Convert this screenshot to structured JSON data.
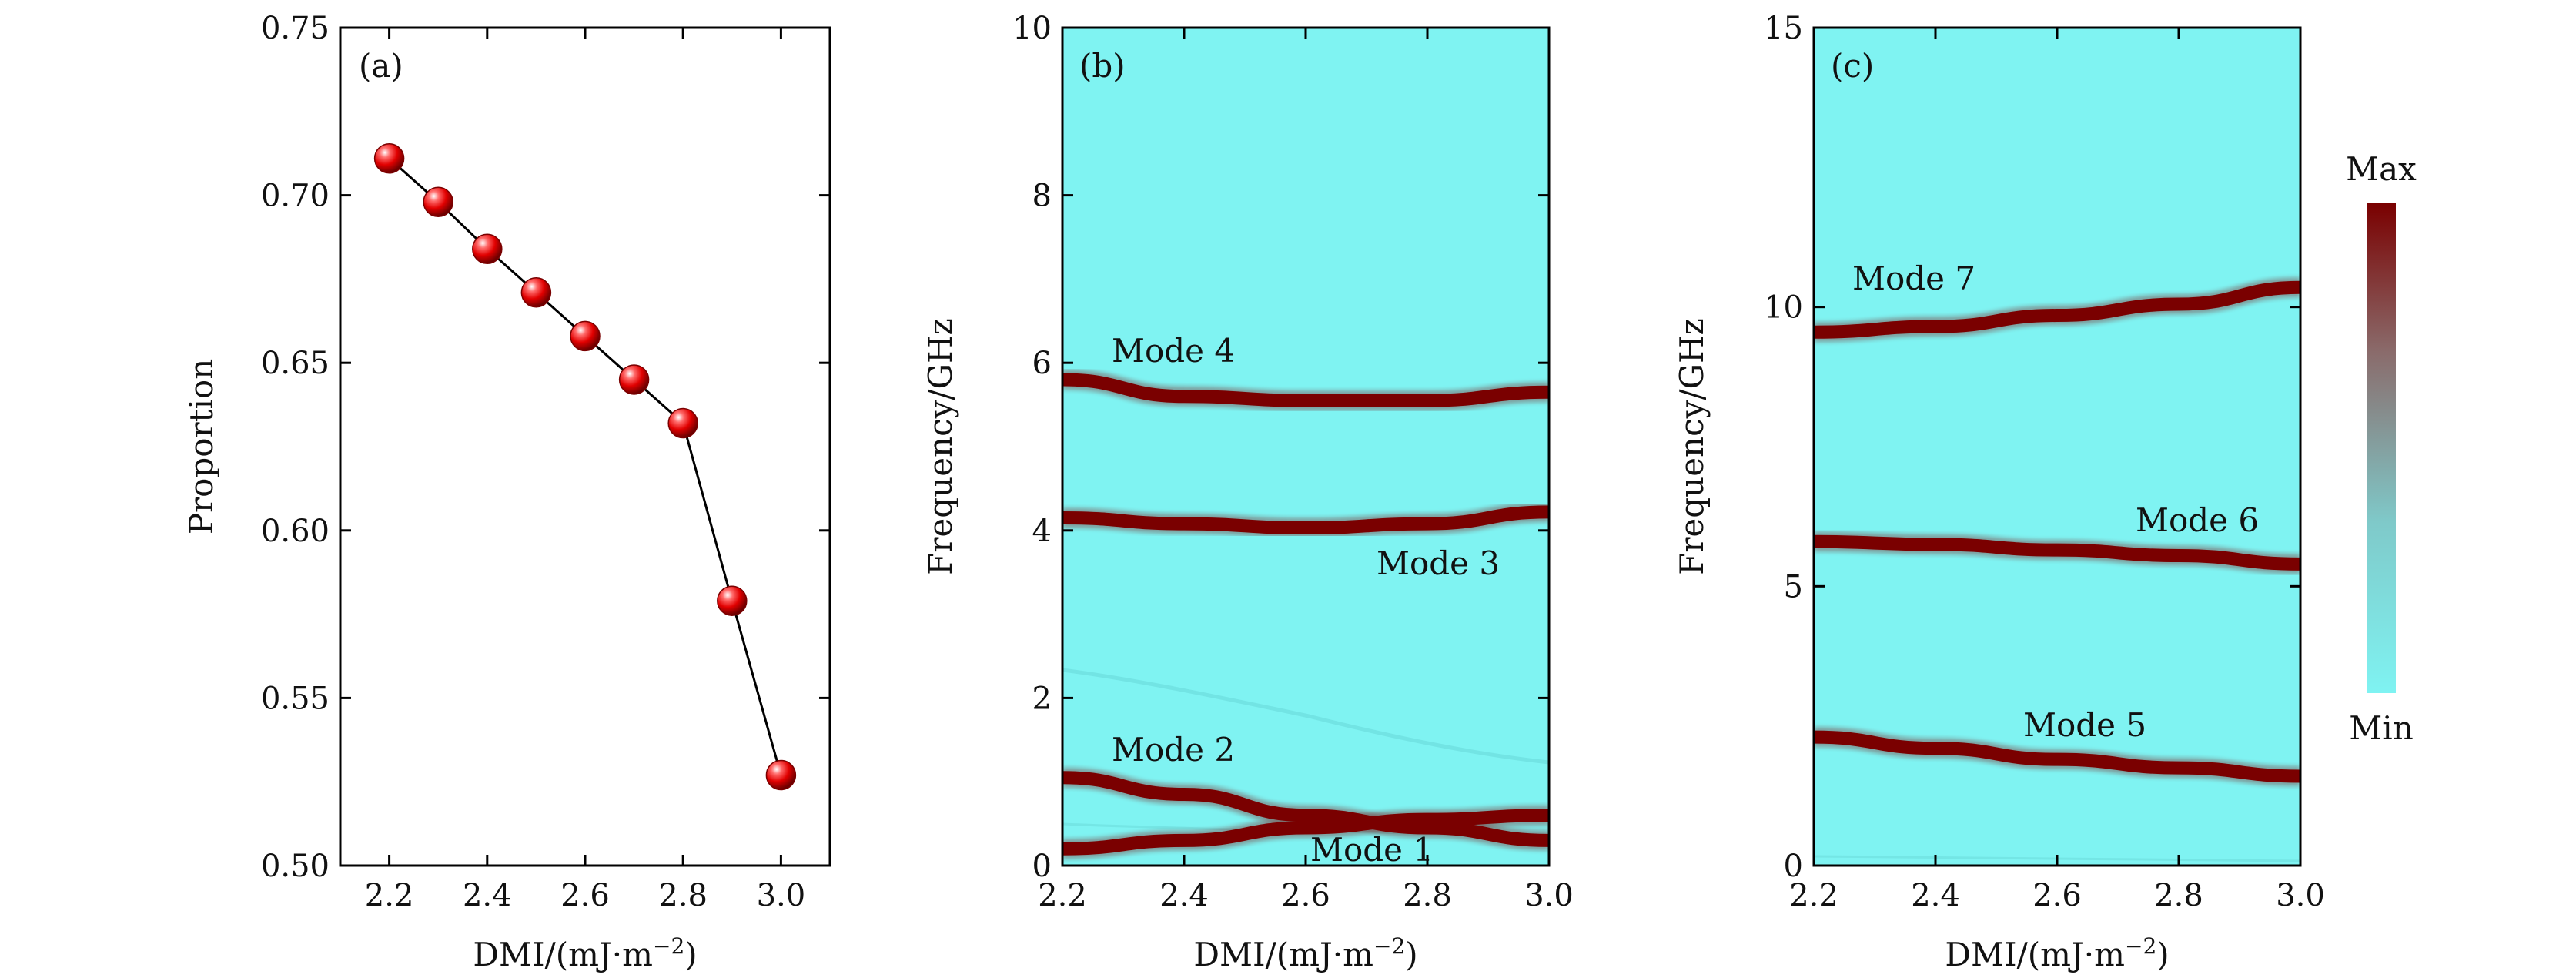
{
  "colors": {
    "background": "#7ff3f2",
    "mode": "#7a0000",
    "marker": "#e10000",
    "line": "#000000"
  },
  "chart_data": [
    {
      "type": "line",
      "panel_label": "(a)",
      "xlabel": "DMI/(mJ·m",
      "xlabel_exp": "−2",
      "xlabel_close": ")",
      "ylabel": "Proportion",
      "xlim": [
        2.1,
        3.1
      ],
      "ylim": [
        0.5,
        0.75
      ],
      "xticks": [
        2.2,
        2.4,
        2.6,
        2.8,
        3.0
      ],
      "xtick_labels": [
        "2.2",
        "2.4",
        "2.6",
        "2.8",
        "3.0"
      ],
      "yticks": [
        0.5,
        0.55,
        0.6,
        0.65,
        0.7,
        0.75
      ],
      "ytick_labels": [
        "0.50",
        "0.55",
        "0.60",
        "0.65",
        "0.70",
        "0.75"
      ],
      "x": [
        2.2,
        2.3,
        2.4,
        2.5,
        2.6,
        2.7,
        2.8,
        2.9,
        3.0
      ],
      "y": [
        0.711,
        0.698,
        0.684,
        0.671,
        0.658,
        0.645,
        0.632,
        0.579,
        0.527
      ]
    },
    {
      "type": "heatmap",
      "panel_label": "(b)",
      "xlabel": "DMI/(mJ·m",
      "xlabel_exp": "−2",
      "xlabel_close": ")",
      "ylabel": "Frequency/GHz",
      "xlim": [
        2.2,
        3.0
      ],
      "ylim": [
        0,
        10
      ],
      "xticks": [
        2.2,
        2.4,
        2.6,
        2.8,
        3.0
      ],
      "xtick_labels": [
        "2.2",
        "2.4",
        "2.6",
        "2.8",
        "3.0"
      ],
      "yticks": [
        0,
        2,
        4,
        6,
        8,
        10
      ],
      "ytick_labels": [
        "0",
        "2",
        "4",
        "6",
        "8",
        "10"
      ],
      "modes": [
        {
          "name": "Mode 4",
          "x": [
            2.2,
            2.4,
            2.6,
            2.8,
            3.0
          ],
          "y": [
            5.8,
            5.6,
            5.55,
            5.55,
            5.65
          ]
        },
        {
          "name": "Mode 3",
          "x": [
            2.2,
            2.4,
            2.6,
            2.8,
            3.0
          ],
          "y": [
            4.15,
            4.08,
            4.03,
            4.08,
            4.22
          ]
        },
        {
          "name": "Mode 2",
          "x": [
            2.2,
            2.4,
            2.6,
            2.8,
            3.0
          ],
          "y": [
            1.05,
            0.85,
            0.6,
            0.45,
            0.3
          ]
        },
        {
          "name": "Mode 1",
          "x": [
            2.2,
            2.4,
            2.6,
            2.8,
            3.0
          ],
          "y": [
            0.2,
            0.3,
            0.45,
            0.55,
            0.6
          ]
        }
      ],
      "annotations": [
        "Mode 4",
        "Mode 3",
        "Mode 2",
        "Mode 1"
      ]
    },
    {
      "type": "heatmap",
      "panel_label": "(c)",
      "xlabel": "DMI/(mJ·m",
      "xlabel_exp": "−2",
      "xlabel_close": ")",
      "ylabel": "Frequency/GHz",
      "xlim": [
        2.2,
        3.0
      ],
      "ylim": [
        0,
        15
      ],
      "xticks": [
        2.2,
        2.4,
        2.6,
        2.8,
        3.0
      ],
      "xtick_labels": [
        "2.2",
        "2.4",
        "2.6",
        "2.8",
        "3.0"
      ],
      "yticks": [
        0,
        5,
        10,
        15
      ],
      "ytick_labels": [
        "0",
        "5",
        "10",
        "15"
      ],
      "modes": [
        {
          "name": "Mode 7",
          "x": [
            2.2,
            2.4,
            2.6,
            2.8,
            3.0
          ],
          "y": [
            9.55,
            9.65,
            9.85,
            10.05,
            10.35
          ]
        },
        {
          "name": "Mode 6",
          "x": [
            2.2,
            2.4,
            2.6,
            2.8,
            3.0
          ],
          "y": [
            5.8,
            5.75,
            5.65,
            5.55,
            5.4
          ]
        },
        {
          "name": "Mode 5",
          "x": [
            2.2,
            2.4,
            2.6,
            2.8,
            3.0
          ],
          "y": [
            2.3,
            2.1,
            1.9,
            1.75,
            1.6
          ]
        }
      ],
      "annotations": [
        "Mode 7",
        "Mode 6",
        "Mode 5"
      ],
      "colorbar": {
        "max_label": "Max",
        "min_label": "Min"
      }
    }
  ]
}
